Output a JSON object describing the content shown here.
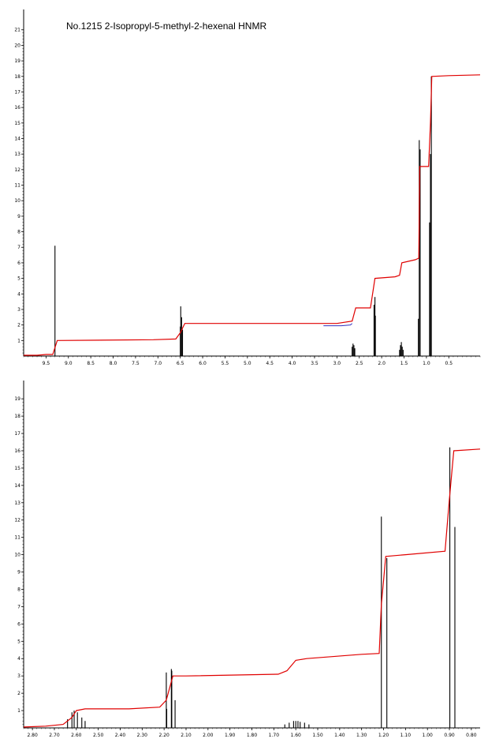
{
  "title": "No.1215  2-Isopropyl-5-methyl-2-hexenal  HNMR",
  "colors": {
    "spectrum": "#000000",
    "integral": "#e00000",
    "integral_overlay": "#3030c0",
    "axis": "#000000"
  },
  "chart_data": [
    {
      "type": "line",
      "name": "full-spectrum",
      "x_range": [
        10.0,
        -0.2
      ],
      "x_ticks": [
        "9.5",
        "9.0",
        "8.5",
        "8.0",
        "7.5",
        "7.0",
        "6.5",
        "6.0",
        "5.5",
        "5.0",
        "4.5",
        "4.0",
        "3.5",
        "3.0",
        "2.5",
        "2.0",
        "1.5",
        "1.0",
        "0.5"
      ],
      "x_tick_values": [
        9.5,
        9.0,
        8.5,
        8.0,
        7.5,
        7.0,
        6.5,
        6.0,
        5.5,
        5.0,
        4.5,
        4.0,
        3.5,
        3.0,
        2.5,
        2.0,
        1.5,
        1.0,
        0.5
      ],
      "y_ticks": [
        "1",
        "2",
        "3",
        "4",
        "5",
        "6",
        "7",
        "8",
        "9",
        "10",
        "11",
        "12",
        "13",
        "14",
        "15",
        "16",
        "17",
        "18",
        "19",
        "20",
        "21"
      ],
      "y_range": [
        0,
        21.8
      ],
      "peaks": [
        {
          "ppm": 9.3,
          "h": 7.1
        },
        {
          "ppm": 6.5,
          "h": 1.9
        },
        {
          "ppm": 6.49,
          "h": 3.2
        },
        {
          "ppm": 6.47,
          "h": 2.5
        },
        {
          "ppm": 6.45,
          "h": 1.7
        },
        {
          "ppm": 2.66,
          "h": 0.6
        },
        {
          "ppm": 2.64,
          "h": 0.8
        },
        {
          "ppm": 2.62,
          "h": 0.7
        },
        {
          "ppm": 2.6,
          "h": 0.5
        },
        {
          "ppm": 2.17,
          "h": 3.3
        },
        {
          "ppm": 2.15,
          "h": 3.8
        },
        {
          "ppm": 2.14,
          "h": 2.6
        },
        {
          "ppm": 1.6,
          "h": 0.4
        },
        {
          "ppm": 1.58,
          "h": 0.7
        },
        {
          "ppm": 1.56,
          "h": 0.9
        },
        {
          "ppm": 1.54,
          "h": 0.6
        },
        {
          "ppm": 1.52,
          "h": 0.4
        },
        {
          "ppm": 1.18,
          "h": 2.4
        },
        {
          "ppm": 1.16,
          "h": 13.9
        },
        {
          "ppm": 1.14,
          "h": 13.3
        },
        {
          "ppm": 0.93,
          "h": 8.6
        },
        {
          "ppm": 0.91,
          "h": 13.0
        },
        {
          "ppm": 0.89,
          "h": 18.0
        }
      ],
      "integral": [
        [
          10.0,
          0.05
        ],
        [
          9.7,
          0.05
        ],
        [
          9.5,
          0.1
        ],
        [
          9.35,
          0.1
        ],
        [
          9.25,
          1.0
        ],
        [
          7.1,
          1.05
        ],
        [
          6.6,
          1.1
        ],
        [
          6.5,
          1.5
        ],
        [
          6.4,
          2.1
        ],
        [
          6.0,
          2.1
        ],
        [
          3.0,
          2.1
        ],
        [
          2.66,
          2.25
        ],
        [
          2.58,
          3.1
        ],
        [
          2.25,
          3.1
        ],
        [
          2.15,
          5.0
        ],
        [
          1.7,
          5.1
        ],
        [
          1.6,
          5.2
        ],
        [
          1.55,
          6.0
        ],
        [
          1.25,
          6.2
        ],
        [
          1.17,
          6.3
        ],
        [
          1.15,
          12.2
        ],
        [
          0.95,
          12.2
        ],
        [
          0.91,
          15.0
        ],
        [
          0.88,
          18.0
        ],
        [
          0.5,
          18.05
        ],
        [
          -0.2,
          18.1
        ]
      ]
    },
    {
      "type": "line",
      "name": "expanded-spectrum",
      "x_range": [
        2.84,
        0.76
      ],
      "x_ticks": [
        "2.80",
        "2.70",
        "2.60",
        "2.50",
        "2.40",
        "2.30",
        "2.20",
        "2.10",
        "2.00",
        "1.90",
        "1.80",
        "1.70",
        "1.60",
        "1.50",
        "1.40",
        "1.30",
        "1.20",
        "1.10",
        "1.00",
        "0.90",
        "0.80"
      ],
      "x_tick_values": [
        2.8,
        2.7,
        2.6,
        2.5,
        2.4,
        2.3,
        2.2,
        2.1,
        2.0,
        1.9,
        1.8,
        1.7,
        1.6,
        1.5,
        1.4,
        1.3,
        1.2,
        1.1,
        1.0,
        0.9,
        0.8
      ],
      "y_ticks": [
        "1",
        "2",
        "3",
        "4",
        "5",
        "6",
        "7",
        "8",
        "9",
        "10",
        "11",
        "12",
        "13",
        "14",
        "15",
        "16",
        "17",
        "18",
        "19"
      ],
      "y_range": [
        0,
        19.6
      ],
      "peaks": [
        {
          "ppm": 2.64,
          "h": 0.5
        },
        {
          "ppm": 2.62,
          "h": 0.9
        },
        {
          "ppm": 2.61,
          "h": 1.0
        },
        {
          "ppm": 2.595,
          "h": 0.9
        },
        {
          "ppm": 2.575,
          "h": 0.6
        },
        {
          "ppm": 2.56,
          "h": 0.4
        },
        {
          "ppm": 2.19,
          "h": 3.2
        },
        {
          "ppm": 2.188,
          "h": 1.1
        },
        {
          "ppm": 2.167,
          "h": 3.4
        },
        {
          "ppm": 2.165,
          "h": 3.3
        },
        {
          "ppm": 2.15,
          "h": 1.6
        },
        {
          "ppm": 1.65,
          "h": 0.2
        },
        {
          "ppm": 1.63,
          "h": 0.3
        },
        {
          "ppm": 1.61,
          "h": 0.4
        },
        {
          "ppm": 1.6,
          "h": 0.4
        },
        {
          "ppm": 1.59,
          "h": 0.4
        },
        {
          "ppm": 1.58,
          "h": 0.35
        },
        {
          "ppm": 1.56,
          "h": 0.3
        },
        {
          "ppm": 1.54,
          "h": 0.2
        },
        {
          "ppm": 1.21,
          "h": 12.2
        },
        {
          "ppm": 1.185,
          "h": 9.8
        },
        {
          "ppm": 0.898,
          "h": 16.2
        },
        {
          "ppm": 0.875,
          "h": 11.6
        }
      ],
      "integral": [
        [
          2.84,
          0.05
        ],
        [
          2.74,
          0.1
        ],
        [
          2.66,
          0.2
        ],
        [
          2.62,
          0.6
        ],
        [
          2.6,
          1.0
        ],
        [
          2.56,
          1.1
        ],
        [
          2.36,
          1.1
        ],
        [
          2.22,
          1.2
        ],
        [
          2.19,
          1.6
        ],
        [
          2.16,
          3.0
        ],
        [
          2.1,
          3.0
        ],
        [
          1.68,
          3.1
        ],
        [
          1.64,
          3.3
        ],
        [
          1.6,
          3.9
        ],
        [
          1.55,
          4.0
        ],
        [
          1.3,
          4.25
        ],
        [
          1.22,
          4.3
        ],
        [
          1.21,
          7.1
        ],
        [
          1.19,
          9.9
        ],
        [
          1.1,
          10.0
        ],
        [
          0.92,
          10.2
        ],
        [
          0.9,
          13.2
        ],
        [
          0.88,
          16.0
        ],
        [
          0.76,
          16.1
        ]
      ]
    }
  ]
}
